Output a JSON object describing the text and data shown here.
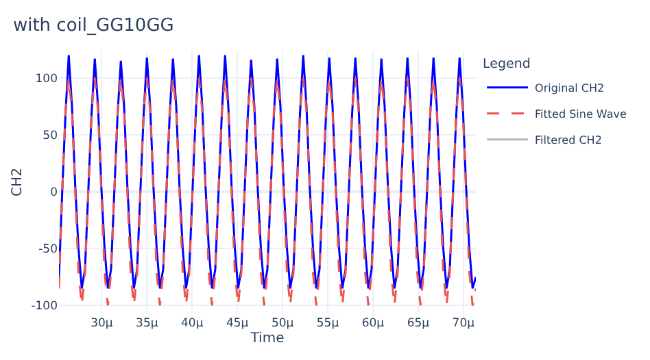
{
  "chart_data": {
    "type": "line",
    "title": "with coil_GG10GG",
    "xlabel": "Time",
    "ylabel": "CH2",
    "legend_title": "Legend",
    "legend": "top right",
    "grid": true,
    "marker": "none",
    "x": [
      25.268,
      25.628,
      25.989,
      26.349,
      26.709,
      27.069,
      27.43,
      27.79,
      28.15,
      28.51,
      28.871,
      29.231,
      29.591,
      29.951,
      30.312,
      30.672,
      31.032,
      31.392,
      31.753,
      32.113,
      32.473,
      32.833,
      33.194,
      33.554,
      33.914,
      34.274,
      34.635,
      34.995,
      35.355,
      35.715,
      36.076,
      36.436,
      36.796,
      37.156,
      37.517,
      37.877,
      38.237,
      38.597,
      38.958,
      39.318,
      39.678,
      40.038,
      40.399,
      40.759,
      41.119,
      41.479,
      41.84,
      42.2,
      42.56,
      42.92,
      43.281,
      43.641,
      44.001,
      44.361,
      44.722,
      45.082,
      45.442,
      45.802,
      46.163,
      46.523,
      46.883,
      47.243,
      47.604,
      47.964,
      48.324,
      48.684,
      49.045,
      49.405,
      49.765,
      50.125,
      50.486,
      50.846,
      51.206,
      51.566,
      51.927,
      52.287,
      52.647,
      53.007,
      53.368,
      53.728,
      54.088,
      54.448,
      54.809,
      55.169,
      55.529,
      55.889,
      56.25,
      56.61,
      56.97,
      57.33,
      57.691,
      58.051,
      58.411,
      58.771,
      59.132,
      59.492,
      59.852,
      60.212,
      60.573,
      60.933,
      61.293,
      61.653,
      62.014,
      62.374,
      62.734,
      63.094,
      63.455,
      63.815,
      64.175,
      64.535,
      64.896,
      65.256,
      65.616,
      65.976,
      66.337,
      66.697,
      67.057,
      67.417,
      67.778,
      68.138,
      68.498,
      68.858,
      69.219,
      69.579,
      69.939,
      70.299,
      70.66,
      71.02,
      71.38
    ],
    "xlim": [
      25.268,
      71.38
    ],
    "xticks": [
      {
        "value": 30,
        "label": "30µ"
      },
      {
        "value": 35,
        "label": "35µ"
      },
      {
        "value": 40,
        "label": "40µ"
      },
      {
        "value": 45,
        "label": "45µ"
      },
      {
        "value": 50,
        "label": "50µ"
      },
      {
        "value": 55,
        "label": "55µ"
      },
      {
        "value": 60,
        "label": "60µ"
      },
      {
        "value": 65,
        "label": "65µ"
      },
      {
        "value": 70,
        "label": "70µ"
      }
    ],
    "ylim": [
      -107,
      124
    ],
    "yticks": [
      -100,
      -50,
      0,
      50,
      100
    ],
    "series": [
      {
        "name": "Original CH2",
        "color": "#0000ff",
        "line_style": "solid",
        "values": [
          -75,
          0,
          68,
          120,
          75,
          5,
          -50,
          -85,
          -68,
          0,
          68,
          117,
          75,
          5,
          -50,
          -85,
          -68,
          0,
          68,
          115,
          75,
          5,
          -50,
          -85,
          -68,
          0,
          68,
          118,
          75,
          5,
          -50,
          -85,
          -68,
          0,
          68,
          117,
          75,
          5,
          -50,
          -85,
          -68,
          0,
          68,
          120,
          75,
          5,
          -50,
          -85,
          -68,
          0,
          68,
          120,
          75,
          5,
          -50,
          -85,
          -68,
          0,
          68,
          116,
          75,
          5,
          -50,
          -85,
          -68,
          0,
          68,
          117,
          75,
          5,
          -50,
          -85,
          -68,
          0,
          68,
          120,
          75,
          5,
          -50,
          -85,
          -68,
          0,
          68,
          118,
          75,
          5,
          -50,
          -85,
          -68,
          0,
          68,
          118,
          75,
          5,
          -50,
          -85,
          -68,
          0,
          68,
          117,
          75,
          5,
          -50,
          -85,
          -68,
          0,
          68,
          118,
          75,
          5,
          -50,
          -85,
          -68,
          0,
          68,
          118,
          75,
          5,
          -50,
          -85,
          -68,
          0,
          68,
          118,
          75,
          5,
          -50,
          -85,
          -75
        ]
      },
      {
        "name": "Fitted Sine Wave",
        "color": "#ef5350",
        "line_style": "dashed",
        "values": [
          -85,
          0,
          71,
          100,
          71,
          0,
          -71,
          -100,
          -71,
          0,
          71,
          100,
          71,
          0,
          -71,
          -100,
          -71,
          0,
          71,
          100,
          71,
          0,
          -71,
          -100,
          -71,
          0,
          71,
          100,
          71,
          0,
          -71,
          -100,
          -71,
          0,
          71,
          100,
          71,
          0,
          -71,
          -100,
          -71,
          0,
          71,
          100,
          71,
          0,
          -71,
          -100,
          -71,
          0,
          71,
          100,
          71,
          0,
          -71,
          -100,
          -71,
          0,
          71,
          100,
          71,
          0,
          -71,
          -100,
          -71,
          0,
          71,
          100,
          71,
          0,
          -71,
          -100,
          -71,
          0,
          71,
          100,
          71,
          0,
          -71,
          -100,
          -71,
          0,
          71,
          100,
          71,
          0,
          -71,
          -100,
          -71,
          0,
          71,
          100,
          71,
          0,
          -71,
          -100,
          -71,
          0,
          71,
          100,
          71,
          0,
          -71,
          -100,
          -71,
          0,
          71,
          100,
          71,
          0,
          -71,
          -100,
          -71,
          0,
          71,
          100,
          71,
          0,
          -71,
          -100,
          -71,
          0,
          71,
          100,
          71,
          0,
          -71,
          -100,
          -85
        ]
      },
      {
        "name": "Filtered CH2",
        "color": "#b8b8b8",
        "line_style": "solid",
        "values": [
          null,
          null,
          null,
          null,
          null,
          null,
          null,
          null,
          null,
          null,
          null,
          null,
          null,
          null,
          null,
          null,
          null,
          null,
          null,
          null,
          null,
          null,
          null,
          null,
          null,
          null,
          null,
          null,
          null,
          null,
          null,
          null,
          null,
          null,
          null,
          null,
          null,
          null,
          null,
          null,
          null,
          null,
          null,
          null,
          null,
          null,
          null,
          null,
          null,
          null,
          null,
          null,
          null,
          null,
          null,
          null,
          null,
          null,
          null,
          null,
          null,
          null,
          null,
          null,
          null,
          null,
          null,
          null,
          null,
          null,
          null,
          null,
          null,
          null,
          null,
          null,
          null,
          null,
          null,
          null,
          null,
          null,
          null,
          null,
          null,
          null,
          null,
          null,
          null,
          null,
          null,
          null,
          null,
          null,
          null,
          null,
          null,
          null,
          null,
          null,
          null,
          null,
          null,
          null,
          null,
          null,
          null,
          null,
          null,
          null,
          null,
          null,
          null,
          null,
          null,
          null,
          null,
          null,
          null,
          null,
          null,
          null,
          null,
          null,
          null,
          null,
          null,
          null,
          null
        ]
      }
    ]
  }
}
